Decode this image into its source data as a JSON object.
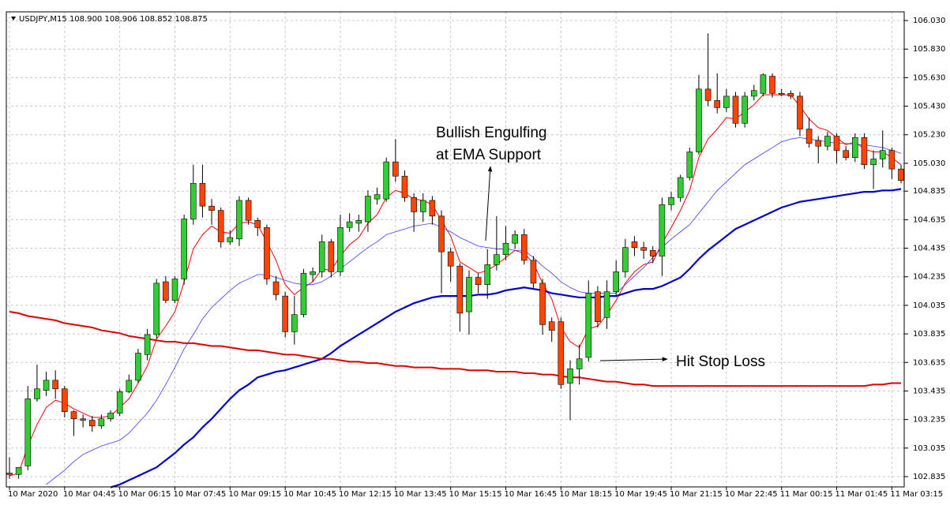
{
  "chart_data": {
    "type": "candlestick",
    "title": "USDJPY,M15 108.900 108.906 108.852 108.875",
    "categories": [
      "10 Mar 2020",
      null,
      null,
      null,
      null,
      null,
      "10 Mar 04:45",
      null,
      null,
      null,
      null,
      null,
      "10 Mar 06:15",
      null,
      null,
      null,
      null,
      null,
      "10 Mar 07:45",
      null,
      null,
      null,
      null,
      null,
      "10 Mar 09:15",
      null,
      null,
      null,
      null,
      null,
      "10 Mar 10:45",
      null,
      null,
      null,
      null,
      null,
      "10 Mar 12:15",
      null,
      null,
      null,
      null,
      null,
      "10 Mar 13:45",
      null,
      null,
      null,
      null,
      null,
      "10 Mar 15:15",
      null,
      null,
      null,
      null,
      null,
      "10 Mar 16:45",
      null,
      null,
      null,
      null,
      null,
      "10 Mar 18:15",
      null,
      null,
      null,
      null,
      null,
      "10 Mar 19:45",
      null,
      null,
      null,
      null,
      null,
      "10 Mar 21:15",
      null,
      null,
      null,
      null,
      null,
      "10 Mar 22:45",
      null,
      null,
      null,
      null,
      null,
      "11 Mar 00:15",
      null,
      null,
      null,
      null,
      null,
      "11 Mar 01:45",
      null,
      null,
      null,
      null,
      null,
      "11 Mar 03:15",
      null
    ],
    "open": [
      102.86,
      102.85,
      102.91,
      103.38,
      103.44,
      103.51,
      103.45,
      103.29,
      103.24,
      103.23,
      103.19,
      103.24,
      103.28,
      103.43,
      103.51,
      103.69,
      103.83,
      104.2,
      104.07,
      104.22,
      104.64,
      104.89,
      104.73,
      104.7,
      104.48,
      104.5,
      104.77,
      104.63,
      104.58,
      104.2,
      104.1,
      103.85,
      103.97,
      104.25,
      104.27,
      104.48,
      104.27,
      104.58,
      104.61,
      104.62,
      104.78,
      104.78,
      105.04,
      104.94,
      104.79,
      104.69,
      104.77,
      104.66,
      104.41,
      104.31,
      103.99,
      104.23,
      104.18,
      104.32,
      104.39,
      104.47,
      104.53,
      104.35,
      104.19,
      103.92,
      103.92,
      103.49,
      103.59,
      103.67,
      104.13,
      103.95,
      104.13,
      104.27,
      104.48,
      104.44,
      104.42,
      104.38,
      104.74,
      104.79,
      104.93,
      105.11,
      105.55,
      105.47,
      105.42,
      105.5,
      105.31,
      105.5,
      105.52,
      105.64,
      105.52,
      105.52,
      105.5,
      105.27,
      105.19,
      105.15,
      105.22,
      105.12,
      105.07,
      105.21,
      105.02,
      105.06,
      105.12,
      104.99
    ],
    "high": [
      102.97,
      102.9,
      103.47,
      103.62,
      103.57,
      103.58,
      103.47,
      103.3,
      103.27,
      103.26,
      103.27,
      103.3,
      103.45,
      103.55,
      103.73,
      103.87,
      104.22,
      104.24,
      104.24,
      104.67,
      105.02,
      105.02,
      104.78,
      104.72,
      104.56,
      104.8,
      104.79,
      104.65,
      104.6,
      104.24,
      104.13,
      104.1,
      104.29,
      104.3,
      104.53,
      104.5,
      104.67,
      104.68,
      104.67,
      104.84,
      104.86,
      105.07,
      105.2,
      104.98,
      104.82,
      104.82,
      104.8,
      104.7,
      104.44,
      104.33,
      104.28,
      104.26,
      104.43,
      104.66,
      104.59,
      104.56,
      104.57,
      104.38,
      104.22,
      103.95,
      103.95,
      103.65,
      103.76,
      104.21,
      104.17,
      104.21,
      104.35,
      104.5,
      104.52,
      104.48,
      104.45,
      104.79,
      104.83,
      104.95,
      105.14,
      105.65,
      105.94,
      105.66,
      105.55,
      105.53,
      105.53,
      105.58,
      105.66,
      105.66,
      105.55,
      105.54,
      105.53,
      105.35,
      105.22,
      105.25,
      105.24,
      105.15,
      105.24,
      105.24,
      105.12,
      105.26,
      105.14,
      105.02
    ],
    "low": [
      102.82,
      102.82,
      102.88,
      103.36,
      103.4,
      103.38,
      103.25,
      103.12,
      103.18,
      103.15,
      103.17,
      103.22,
      103.26,
      103.42,
      103.49,
      103.65,
      103.8,
      104.05,
      104.05,
      104.18,
      104.6,
      104.65,
      104.6,
      104.44,
      104.46,
      104.45,
      104.6,
      104.52,
      104.18,
      104.07,
      103.81,
      103.76,
      103.95,
      104.2,
      104.23,
      104.23,
      104.24,
      104.55,
      104.55,
      104.55,
      104.74,
      104.76,
      104.9,
      104.76,
      104.55,
      104.62,
      104.6,
      104.12,
      104.2,
      103.85,
      103.83,
      104.12,
      104.08,
      104.28,
      104.35,
      104.43,
      104.32,
      104.15,
      103.83,
      103.78,
      103.45,
      103.23,
      103.48,
      103.64,
      103.88,
      103.87,
      104.1,
      104.23,
      104.38,
      104.36,
      104.33,
      104.24,
      104.7,
      104.76,
      104.91,
      105.09,
      105.43,
      105.38,
      105.39,
      105.28,
      105.28,
      105.47,
      105.5,
      105.49,
      105.5,
      105.48,
      105.22,
      105.14,
      105.03,
      105.12,
      105.03,
      105.05,
      105.04,
      104.99,
      104.85,
      105.0,
      104.92,
      104.89
    ],
    "close": [
      102.85,
      102.9,
      103.38,
      103.45,
      103.51,
      103.45,
      103.29,
      103.24,
      103.23,
      103.19,
      103.24,
      103.28,
      103.43,
      103.51,
      103.7,
      103.83,
      104.19,
      104.07,
      104.22,
      104.64,
      104.89,
      104.73,
      104.7,
      104.48,
      104.51,
      104.77,
      104.63,
      104.58,
      104.22,
      104.11,
      103.85,
      103.97,
      104.26,
      104.27,
      104.48,
      104.27,
      104.58,
      104.62,
      104.63,
      104.8,
      104.81,
      105.04,
      104.94,
      104.79,
      104.69,
      104.77,
      104.66,
      104.41,
      104.31,
      103.98,
      104.23,
      104.18,
      104.32,
      104.39,
      104.47,
      104.53,
      104.35,
      104.19,
      103.9,
      103.86,
      103.48,
      103.59,
      103.66,
      104.12,
      103.92,
      104.13,
      104.27,
      104.44,
      104.44,
      104.42,
      104.38,
      104.74,
      104.79,
      104.93,
      105.11,
      105.55,
      105.47,
      105.42,
      105.5,
      105.31,
      105.5,
      105.54,
      105.65,
      105.52,
      105.51,
      105.5,
      105.27,
      105.17,
      105.15,
      105.22,
      105.12,
      105.07,
      105.21,
      105.02,
      105.06,
      105.12,
      104.99,
      104.91
    ],
    "up_color": "#32cd32",
    "down_color": "#ff4500",
    "lines": [
      {
        "color": "#ff0000",
        "values": [
          102.84,
          102.86,
          103.05,
          103.2,
          103.32,
          103.37,
          103.35,
          103.31,
          103.28,
          103.25,
          103.25,
          103.26,
          103.32,
          103.38,
          103.49,
          103.61,
          103.8,
          103.89,
          103.99,
          104.2,
          104.43,
          104.53,
          104.59,
          104.55,
          104.54,
          104.61,
          104.62,
          104.6,
          104.48,
          104.35,
          104.18,
          104.11,
          104.16,
          104.2,
          104.29,
          104.28,
          104.38,
          104.46,
          104.51,
          104.61,
          104.67,
          104.79,
          104.84,
          104.82,
          104.78,
          104.77,
          104.74,
          104.63,
          104.52,
          104.34,
          104.3,
          104.26,
          104.28,
          104.32,
          104.37,
          104.42,
          104.4,
          104.33,
          104.19,
          104.08,
          103.88,
          103.78,
          103.74,
          103.87,
          103.89,
          103.97,
          104.07,
          104.19,
          104.27,
          104.32,
          104.34,
          104.47,
          104.58,
          104.7,
          104.84,
          105.07,
          105.2,
          105.27,
          105.35,
          105.34,
          105.39,
          105.44,
          105.51,
          105.51,
          105.51,
          105.51,
          105.43,
          105.34,
          105.28,
          105.26,
          105.21,
          105.16,
          105.18,
          105.13,
          105.11,
          105.11,
          105.07,
          105.02
        ]
      },
      {
        "color": "#3c3cff",
        "values": [
          null,
          null,
          null,
          null,
          102.78,
          102.83,
          102.88,
          102.94,
          102.99,
          103.02,
          103.05,
          103.07,
          103.09,
          103.14,
          103.21,
          103.28,
          103.37,
          103.48,
          103.6,
          103.73,
          103.83,
          103.94,
          104.02,
          104.08,
          104.14,
          104.19,
          104.22,
          104.25,
          104.25,
          104.23,
          104.21,
          104.19,
          104.18,
          104.18,
          104.2,
          104.24,
          104.29,
          104.34,
          104.39,
          104.44,
          104.48,
          104.53,
          104.55,
          104.57,
          104.59,
          104.6,
          104.61,
          104.58,
          104.55,
          104.51,
          104.48,
          104.45,
          104.44,
          104.43,
          104.43,
          104.42,
          104.42,
          104.37,
          104.31,
          104.26,
          104.2,
          104.16,
          104.13,
          104.12,
          104.12,
          104.12,
          104.12,
          104.18,
          104.24,
          104.3,
          104.37,
          104.44,
          104.5,
          104.55,
          104.6,
          104.68,
          104.76,
          104.84,
          104.9,
          104.96,
          105.02,
          105.06,
          105.1,
          105.14,
          105.18,
          105.2,
          105.21,
          105.2,
          105.19,
          105.18,
          105.17,
          105.17,
          105.16,
          105.16,
          105.15,
          105.14,
          105.12,
          105.1
        ]
      },
      {
        "color": "#0000cd",
        "values": [
          null,
          null,
          null,
          null,
          null,
          null,
          null,
          null,
          null,
          null,
          null,
          102.76,
          102.78,
          102.81,
          102.84,
          102.87,
          102.9,
          102.95,
          103.0,
          103.06,
          103.11,
          103.18,
          103.24,
          103.31,
          103.38,
          103.44,
          103.48,
          103.53,
          103.55,
          103.57,
          103.58,
          103.6,
          103.62,
          103.64,
          103.66,
          103.7,
          103.75,
          103.79,
          103.83,
          103.87,
          103.91,
          103.95,
          103.99,
          104.02,
          104.05,
          104.07,
          104.09,
          104.1,
          104.1,
          104.1,
          104.1,
          104.11,
          104.11,
          104.12,
          104.14,
          104.15,
          104.16,
          104.15,
          104.14,
          104.12,
          104.11,
          104.1,
          104.09,
          104.09,
          104.09,
          104.1,
          104.1,
          104.12,
          104.14,
          104.15,
          104.15,
          104.17,
          104.2,
          104.23,
          104.29,
          104.36,
          104.42,
          104.47,
          104.52,
          104.57,
          104.6,
          104.63,
          104.66,
          104.69,
          104.72,
          104.74,
          104.76,
          104.77,
          104.78,
          104.79,
          104.8,
          104.81,
          104.82,
          104.83,
          104.83,
          104.84,
          104.84,
          104.85
        ]
      },
      {
        "color": "#e00000",
        "values": [
          103.99,
          103.98,
          103.96,
          103.95,
          103.94,
          103.93,
          103.91,
          103.9,
          103.89,
          103.88,
          103.86,
          103.85,
          103.84,
          103.82,
          103.81,
          103.8,
          103.79,
          103.78,
          103.78,
          103.77,
          103.77,
          103.76,
          103.75,
          103.75,
          103.74,
          103.73,
          103.72,
          103.72,
          103.71,
          103.7,
          103.69,
          103.69,
          103.68,
          103.67,
          103.66,
          103.66,
          103.65,
          103.64,
          103.64,
          103.63,
          103.63,
          103.62,
          103.61,
          103.61,
          103.6,
          103.6,
          103.6,
          103.59,
          103.59,
          103.59,
          103.58,
          103.58,
          103.58,
          103.57,
          103.57,
          103.57,
          103.56,
          103.56,
          103.55,
          103.55,
          103.54,
          103.53,
          103.53,
          103.52,
          103.51,
          103.5,
          103.5,
          103.49,
          103.48,
          103.48,
          103.47,
          103.47,
          103.47,
          103.47,
          103.47,
          103.47,
          103.47,
          103.47,
          103.47,
          103.47,
          103.47,
          103.47,
          103.47,
          103.47,
          103.47,
          103.47,
          103.47,
          103.47,
          103.47,
          103.47,
          103.47,
          103.47,
          103.47,
          103.47,
          103.48,
          103.48,
          103.49,
          103.49
        ]
      }
    ],
    "ylim": [
      102.763,
      106.091
    ],
    "yticks": [
      102.835,
      103.035,
      103.235,
      103.435,
      103.635,
      103.835,
      104.035,
      104.235,
      104.435,
      104.635,
      104.835,
      {
        "value": 105.03,
        "label": "105.030"
      },
      {
        "value": 105.23,
        "label": "105.230"
      },
      {
        "value": 105.43,
        "label": "105.430"
      },
      {
        "value": 105.63,
        "label": "105.630"
      },
      {
        "value": 105.83,
        "label": "105.830"
      },
      {
        "value": 106.03,
        "label": "106.030"
      }
    ],
    "grid": true,
    "annotations": [
      {
        "lines": [
          "Bullish Engulfing",
          "at EMA Support"
        ]
      },
      {
        "lines": [
          "Hit Stop Loss"
        ]
      }
    ]
  }
}
